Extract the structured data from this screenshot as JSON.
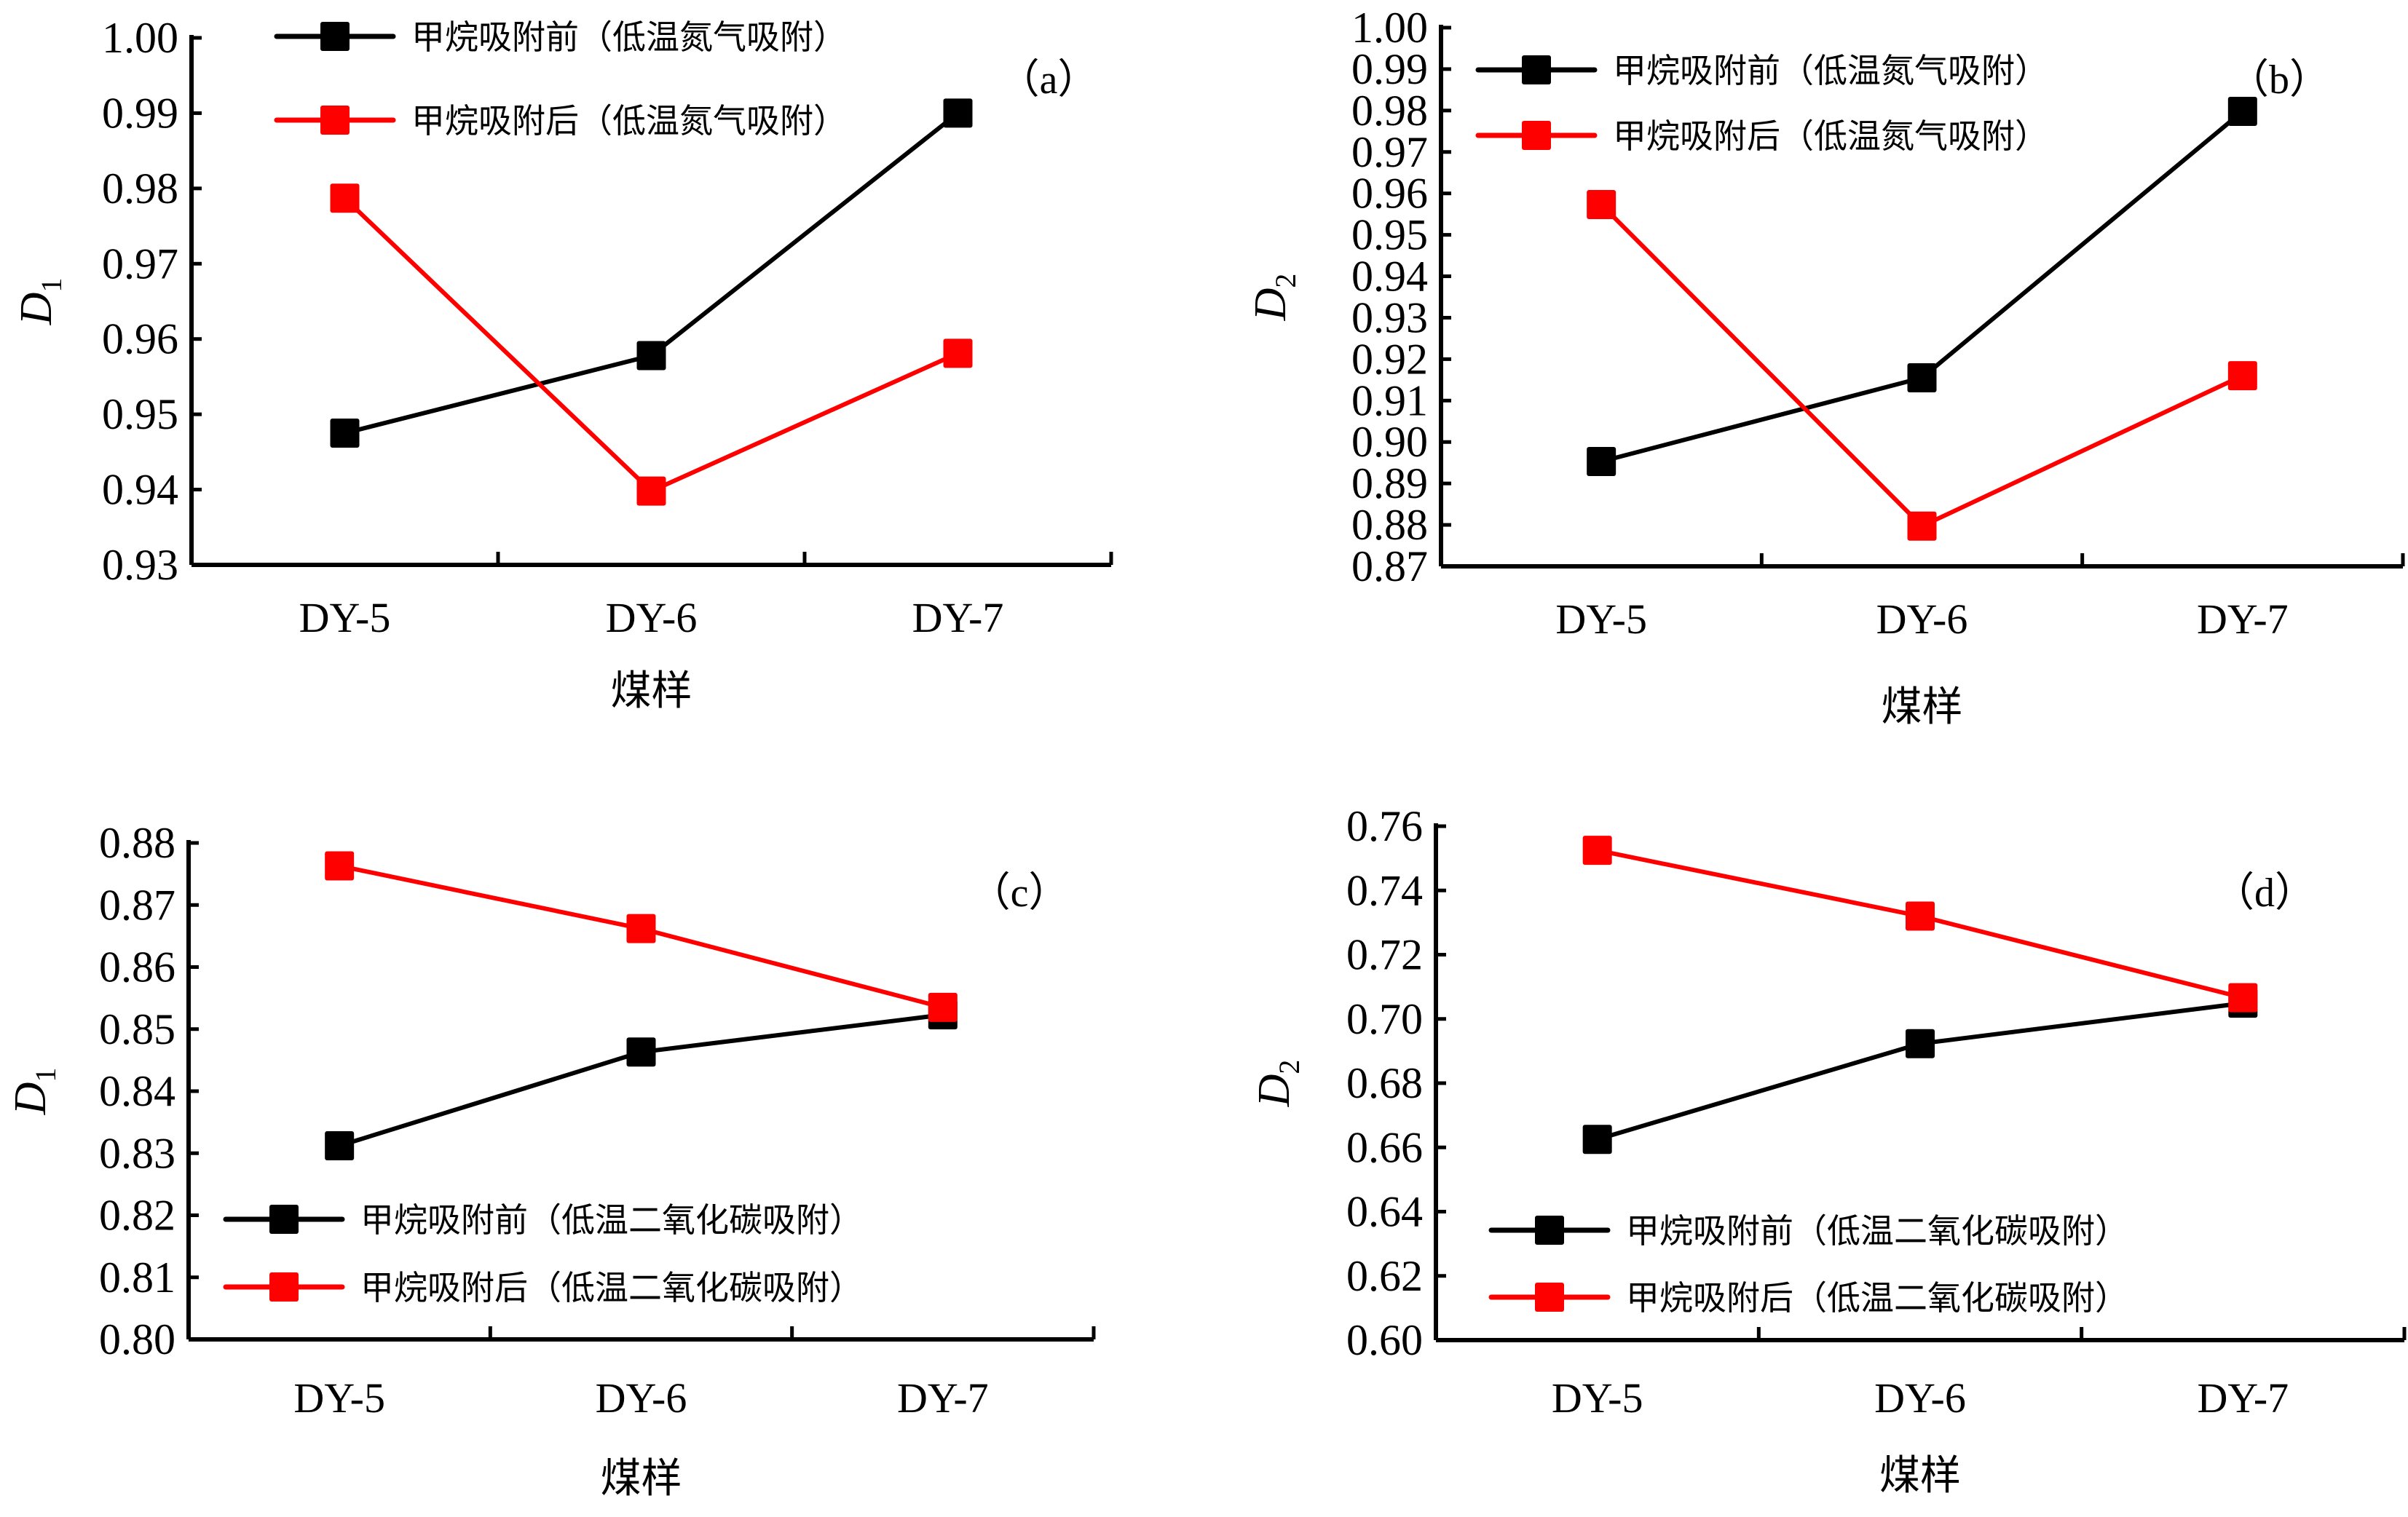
{
  "chart_data": [
    {
      "panel": "a",
      "type": "line",
      "tag": "（a）",
      "xlabel": "煤样",
      "ylabel": "D",
      "ylabel_sub": "1",
      "categories": [
        "DY-5",
        "DY-6",
        "DY-7"
      ],
      "ylim": [
        0.93,
        1.0
      ],
      "yticks": [
        "0.93",
        "0.94",
        "0.95",
        "0.96",
        "0.97",
        "0.98",
        "0.99",
        "1.00"
      ],
      "legend_position": "top-center",
      "series": [
        {
          "name": "甲烷吸附前（低温氮气吸附）",
          "color": "#000000",
          "values": [
            0.9475,
            0.9578,
            0.99
          ]
        },
        {
          "name": "甲烷吸附后（低温氮气吸附）",
          "color": "#ff0000",
          "values": [
            0.9787,
            0.9398,
            0.9581
          ]
        }
      ]
    },
    {
      "panel": "b",
      "type": "line",
      "tag": "（b）",
      "xlabel": "煤样",
      "ylabel": "D",
      "ylabel_sub": "2",
      "categories": [
        "DY-5",
        "DY-6",
        "DY-7"
      ],
      "ylim": [
        0.87,
        1.0
      ],
      "yticks": [
        "0.87",
        "0.88",
        "0.89",
        "0.90",
        "0.91",
        "0.92",
        "0.93",
        "0.94",
        "0.95",
        "0.96",
        "0.97",
        "0.98",
        "0.99",
        "1.00"
      ],
      "legend_position": "top-center",
      "series": [
        {
          "name": "甲烷吸附前（低温氮气吸附）",
          "color": "#000000",
          "values": [
            0.8953,
            0.9155,
            0.9798
          ]
        },
        {
          "name": "甲烷吸附后（低温氮气吸附）",
          "color": "#ff0000",
          "values": [
            0.9573,
            0.8797,
            0.916
          ]
        }
      ]
    },
    {
      "panel": "c",
      "type": "line",
      "tag": "（c）",
      "xlabel": "煤样",
      "ylabel": "D",
      "ylabel_sub": "1",
      "categories": [
        "DY-5",
        "DY-6",
        "DY-7"
      ],
      "ylim": [
        0.8,
        0.88
      ],
      "yticks": [
        "0.80",
        "0.81",
        "0.82",
        "0.83",
        "0.84",
        "0.85",
        "0.86",
        "0.87",
        "0.88"
      ],
      "legend_position": "bottom-center",
      "series": [
        {
          "name": "甲烷吸附前（低温二氧化碳吸附）",
          "color": "#000000",
          "values": [
            0.8312,
            0.8463,
            0.8523
          ]
        },
        {
          "name": "甲烷吸附后（低温二氧化碳吸附）",
          "color": "#ff0000",
          "values": [
            0.8763,
            0.8662,
            0.8535
          ]
        }
      ]
    },
    {
      "panel": "d",
      "type": "line",
      "tag": "（d）",
      "xlabel": "煤样",
      "ylabel": "D",
      "ylabel_sub": "2",
      "categories": [
        "DY-5",
        "DY-6",
        "DY-7"
      ],
      "ylim": [
        0.6,
        0.76
      ],
      "yticks": [
        "0.60",
        "0.62",
        "0.64",
        "0.66",
        "0.68",
        "0.70",
        "0.72",
        "0.74",
        "0.76"
      ],
      "legend_position": "bottom-center",
      "series": [
        {
          "name": "甲烷吸附前（低温二氧化碳吸附）",
          "color": "#000000",
          "values": [
            0.6625,
            0.6923,
            0.7049
          ]
        },
        {
          "name": "甲烷吸附后（低温二氧化碳吸附）",
          "color": "#ff0000",
          "values": [
            0.7525,
            0.732,
            0.7066
          ]
        }
      ]
    }
  ]
}
